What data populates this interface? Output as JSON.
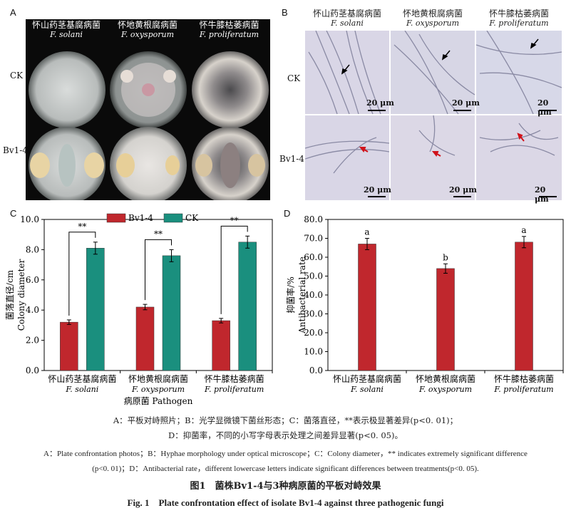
{
  "panels": {
    "A": {
      "label": "A",
      "columns": [
        {
          "cn": "怀山药茎基腐病菌",
          "latin": "F. solani"
        },
        {
          "cn": "怀地黄根腐病菌",
          "latin": "F. oxysporum"
        },
        {
          "cn": "怀牛膝枯萎病菌",
          "latin": "F. proliferatum"
        }
      ],
      "rows": [
        "CK",
        "Bv1-4"
      ]
    },
    "B": {
      "label": "B",
      "columns": [
        {
          "cn": "怀山药茎基腐病菌",
          "latin": "F. solani"
        },
        {
          "cn": "怀地黄根腐病菌",
          "latin": "F. oxysporum"
        },
        {
          "cn": "怀牛膝枯萎病菌",
          "latin": "F. proliferatum"
        }
      ],
      "rows": [
        "CK",
        "Bv1-4"
      ],
      "scale_bar": "20 μm"
    },
    "C": {
      "label": "C"
    },
    "D": {
      "label": "D"
    }
  },
  "chart_data": [
    {
      "type": "bar",
      "panel": "C",
      "categories": [
        {
          "cn": "怀山药茎基腐病菌",
          "latin": "F. solani"
        },
        {
          "cn": "怀地黄根腐病菌",
          "latin": "F. oxysporum"
        },
        {
          "cn": "怀牛膝枯萎病菌",
          "latin": "F. proliferatum"
        }
      ],
      "series": [
        {
          "name": "Bv1-4",
          "color": "#c0272d",
          "values": [
            3.2,
            4.2,
            3.3
          ],
          "errors": [
            0.15,
            0.18,
            0.15
          ]
        },
        {
          "name": "CK",
          "color": "#1a8f7e",
          "values": [
            8.1,
            7.6,
            8.5
          ],
          "errors": [
            0.4,
            0.4,
            0.4
          ]
        }
      ],
      "significance": [
        "**",
        "**",
        "**"
      ],
      "ylabel_cn": "菌落直径/cm",
      "ylabel_en": "Colony diameter",
      "xlabel": "病原菌 Pathogen",
      "ylim": [
        0,
        10
      ],
      "yticks": [
        "0.0",
        "2.0",
        "4.0",
        "6.0",
        "8.0",
        "10.0"
      ]
    },
    {
      "type": "bar",
      "panel": "D",
      "categories": [
        {
          "cn": "怀山药茎基腐病菌",
          "latin": "F. solani"
        },
        {
          "cn": "怀地黄根腐病菌",
          "latin": "F. oxysporum"
        },
        {
          "cn": "怀牛膝枯萎病菌",
          "latin": "F. proliferatum"
        }
      ],
      "series": [
        {
          "color": "#c0272d",
          "values": [
            67.0,
            54.0,
            68.0
          ],
          "errors": [
            3.0,
            2.5,
            3.0
          ]
        }
      ],
      "letters": [
        "a",
        "b",
        "a"
      ],
      "ylabel_cn": "抑菌率/%",
      "ylabel_en": "Antibacterial rate",
      "ylim": [
        0,
        80
      ],
      "yticks": [
        "0.0",
        "10.0",
        "20.0",
        "30.0",
        "40.0",
        "50.0",
        "60.0",
        "70.0",
        "80.0"
      ]
    }
  ],
  "captions": {
    "cn_line1": "A：平板对峙照片；B：光学显微镜下菌丝形态；C：菌落直径，**表示极显著差异(p<0. 01)；",
    "cn_line2": "D：抑菌率，不同的小写字母表示处理之间差异显著(p<0. 05)。",
    "en_line1": "A：Plate confrontation photos；B：Hyphae morphology under optical microscope；C：Colony diameter，** indicates extremely significant difference",
    "en_line2": "(p<0. 01)；D：Antibacterial rate，different lowercase letters indicate significant differences between treatments(p<0. 05).",
    "title_cn": "图1　菌株Bv1-4与3种病原菌的平板对峙效果",
    "title_en": "Fig. 1　Plate confrontation effect of isolate Bv1-4 against three pathogenic fungi"
  }
}
